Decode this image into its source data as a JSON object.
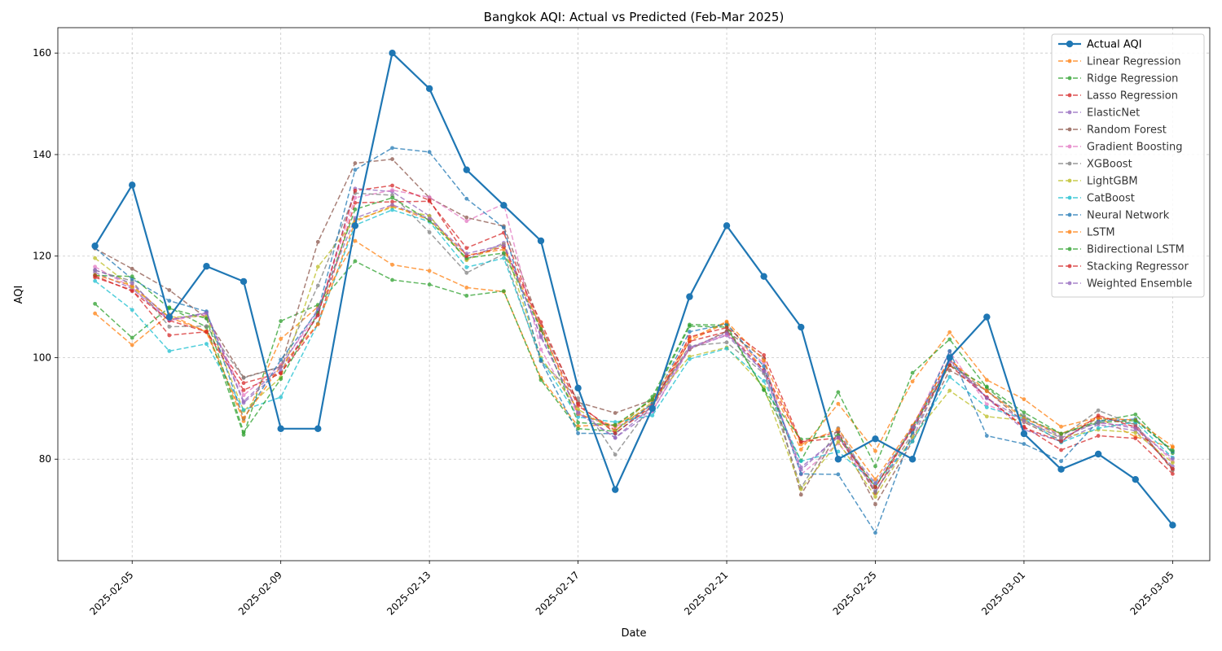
{
  "chart_data": {
    "type": "line",
    "title": "Bangkok AQI: Actual vs Predicted (Feb-Mar 2025)",
    "xlabel": "Date",
    "ylabel": "AQI",
    "grid": true,
    "legend_position": "top-right",
    "ylim": [
      60,
      165
    ],
    "yticks": [
      "80",
      "100",
      "120",
      "140",
      "160"
    ],
    "xlim": [
      "2025-02-03",
      "2025-03-06"
    ],
    "xticks": [
      "2025-02-05",
      "2025-02-09",
      "2025-02-13",
      "2025-02-17",
      "2025-02-21",
      "2025-02-25",
      "2025-03-01",
      "2025-03-05"
    ],
    "x": [
      "2025-02-04",
      "2025-02-05",
      "2025-02-06",
      "2025-02-07",
      "2025-02-08",
      "2025-02-09",
      "2025-02-10",
      "2025-02-11",
      "2025-02-12",
      "2025-02-13",
      "2025-02-14",
      "2025-02-15",
      "2025-02-16",
      "2025-02-17",
      "2025-02-18",
      "2025-02-19",
      "2025-02-20",
      "2025-02-21",
      "2025-02-22",
      "2025-02-23",
      "2025-02-24",
      "2025-02-25",
      "2025-02-26",
      "2025-02-27",
      "2025-02-28",
      "2025-03-01",
      "2025-03-02",
      "2025-03-03",
      "2025-03-04",
      "2025-03-05"
    ],
    "series": [
      {
        "name": "Actual AQI",
        "color": "#1f77b4",
        "style": "solid",
        "values": [
          122,
          134,
          108,
          118,
          115,
          86,
          86,
          126,
          160,
          153,
          137,
          130,
          123,
          94,
          74,
          90,
          112,
          126,
          116,
          106,
          80,
          84,
          80,
          100,
          108,
          85,
          78,
          81,
          76,
          67
        ]
      },
      {
        "name": "Linear Regression",
        "color": "#ff7f0e",
        "style": "dashed",
        "values": [
          108.7,
          102.5,
          108.5,
          105.0,
          87.5,
          103.7,
          110.0,
          123.0,
          118.3,
          117.1,
          113.8,
          113.0,
          96.0,
          86.5,
          86.8,
          90.1,
          103.3,
          106.9,
          97.5,
          81.9,
          90.9,
          81.6,
          95.3,
          105.0,
          95.6,
          91.8,
          86.4,
          88.2,
          84.4,
          82.3
        ]
      },
      {
        "name": "Ridge Regression",
        "color": "#2ca02c",
        "style": "dashed",
        "values": [
          110.6,
          103.9,
          109.9,
          106.0,
          84.8,
          107.2,
          110.4,
          119.0,
          115.3,
          114.4,
          112.2,
          113.1,
          95.6,
          86.0,
          85.5,
          92.3,
          106.5,
          106.4,
          93.6,
          79.7,
          93.2,
          78.6,
          97.0,
          103.6,
          94.1,
          88.2,
          85.0,
          87.5,
          88.8,
          81.2
        ]
      },
      {
        "name": "Lasso Regression",
        "color": "#d62728",
        "style": "dashed",
        "values": [
          115.8,
          113.3,
          104.4,
          105.1,
          95.0,
          97.0,
          106.6,
          130.5,
          130.7,
          130.8,
          121.6,
          124.6,
          105.4,
          90.5,
          85.7,
          90.9,
          103.2,
          105.1,
          97.6,
          83.4,
          85.4,
          73.3,
          86.5,
          99.8,
          92.1,
          86.4,
          81.8,
          84.6,
          84.1,
          77.1
        ]
      },
      {
        "name": "ElasticNet",
        "color": "#9467bd",
        "style": "dashed",
        "values": [
          116.8,
          113.6,
          107.3,
          108.9,
          91.1,
          97.5,
          108.3,
          133.3,
          132.7,
          127.9,
          119.4,
          122.6,
          104.0,
          89.4,
          84.2,
          89.4,
          101.8,
          104.4,
          97.2,
          77.9,
          84.5,
          73.8,
          84.1,
          99.5,
          92.1,
          85.8,
          83.5,
          86.8,
          85.6,
          78.6
        ]
      },
      {
        "name": "Random Forest",
        "color": "#8c564b",
        "style": "dashed",
        "values": [
          121.5,
          117.5,
          113.3,
          107.8,
          96.1,
          98.2,
          122.8,
          138.3,
          139.1,
          131.5,
          127.6,
          125.9,
          106.2,
          91.2,
          89.1,
          91.7,
          101.6,
          105.2,
          99.9,
          73.0,
          85.3,
          71.1,
          83.5,
          97.5,
          93.5,
          87.3,
          83.7,
          88.2,
          86.9,
          77.8
        ]
      },
      {
        "name": "Gradient Boosting",
        "color": "#e377c2",
        "style": "dashed",
        "values": [
          117.9,
          113.8,
          107.3,
          108.5,
          92.6,
          98.6,
          108.7,
          131.5,
          133.0,
          131.6,
          126.9,
          130.3,
          101.6,
          88.7,
          86.4,
          89.5,
          101.9,
          104.5,
          99.0,
          77.0,
          83.1,
          74.4,
          86.2,
          101.2,
          90.8,
          87.5,
          84.9,
          87.1,
          86.5,
          79.6
        ]
      },
      {
        "name": "XGBoost",
        "color": "#7f7f7f",
        "style": "dashed",
        "values": [
          117.2,
          115.1,
          106.1,
          106.2,
          96.0,
          98.2,
          114.2,
          132.4,
          132.0,
          124.7,
          116.7,
          120.4,
          99.3,
          92.0,
          80.9,
          90.9,
          102.3,
          103.0,
          96.9,
          74.4,
          86.1,
          73.5,
          85.1,
          98.6,
          93.4,
          88.5,
          84.4,
          89.6,
          86.7,
          78.1
        ]
      },
      {
        "name": "LightGBM",
        "color": "#bcbd22",
        "style": "dashed",
        "values": [
          119.6,
          113.9,
          108.0,
          108.1,
          89.5,
          96.1,
          117.9,
          127.1,
          129.6,
          127.9,
          119.2,
          122.3,
          100.0,
          89.8,
          85.5,
          91.3,
          100.2,
          102.0,
          94.2,
          74.1,
          83.4,
          72.6,
          84.4,
          93.5,
          88.4,
          87.6,
          84.2,
          85.8,
          85.2,
          79.3
        ]
      },
      {
        "name": "CatBoost",
        "color": "#17becf",
        "style": "dashed",
        "values": [
          115.1,
          109.4,
          101.3,
          102.7,
          89.7,
          92.2,
          106.7,
          126.1,
          129.1,
          126.8,
          117.8,
          119.6,
          99.7,
          88.3,
          87.3,
          88.6,
          99.7,
          101.8,
          95.4,
          79.6,
          81.5,
          75.2,
          83.5,
          96.2,
          90.2,
          88.0,
          83.3,
          86.1,
          87.3,
          80.3
        ]
      },
      {
        "name": "Neural Network",
        "color": "#1f77b4",
        "style": "dashed",
        "values": [
          121.6,
          115.5,
          111.2,
          109.1,
          88.0,
          99.6,
          109.2,
          137.0,
          141.3,
          140.5,
          131.3,
          125.6,
          99.4,
          85.1,
          85.0,
          91.0,
          105.1,
          106.6,
          98.3,
          77.1,
          77.0,
          65.5,
          85.3,
          101.3,
          84.6,
          83.0,
          79.6,
          87.5,
          87.9,
          81.5
        ]
      },
      {
        "name": "LSTM",
        "color": "#ff7f0e",
        "style": "dashed",
        "values": [
          116.3,
          114.2,
          107.9,
          105.2,
          88.1,
          98.3,
          106.6,
          126.8,
          129.9,
          127.1,
          120.2,
          121.3,
          106.1,
          88.9,
          86.5,
          91.7,
          103.7,
          107.1,
          99.4,
          82.9,
          85.9,
          76.0,
          86.6,
          99.6,
          93.4,
          88.0,
          85.0,
          88.1,
          87.7,
          82.5
        ]
      },
      {
        "name": "Bidirectional LSTM",
        "color": "#2ca02c",
        "style": "dashed",
        "values": [
          116.2,
          116.0,
          109.7,
          107.7,
          85.3,
          95.8,
          108.8,
          129.2,
          131.5,
          127.0,
          119.6,
          120.6,
          105.6,
          87.2,
          86.7,
          91.8,
          106.2,
          106.0,
          93.7,
          83.9,
          84.7,
          74.5,
          86.3,
          98.5,
          94.3,
          89.2,
          85.0,
          87.2,
          87.6,
          81.7
        ]
      },
      {
        "name": "Stacking Regressor",
        "color": "#d62728",
        "style": "dashed",
        "values": [
          116.1,
          113.1,
          107.3,
          105.1,
          93.6,
          96.9,
          108.4,
          132.9,
          133.9,
          131.0,
          120.0,
          121.8,
          107.0,
          90.9,
          85.1,
          90.5,
          104.1,
          105.9,
          100.5,
          83.4,
          84.2,
          74.5,
          85.9,
          98.5,
          92.2,
          86.2,
          83.5,
          88.6,
          86.3,
          78.1
        ]
      },
      {
        "name": "Weighted Ensemble",
        "color": "#9467bd",
        "style": "dashed",
        "values": [
          117.3,
          114.6,
          107.5,
          108.8,
          91.4,
          98.2,
          109.6,
          127.5,
          130.1,
          127.4,
          120.5,
          122.2,
          104.3,
          89.1,
          84.2,
          90.4,
          102.0,
          104.8,
          97.3,
          78.4,
          84.3,
          75.3,
          86.3,
          99.2,
          92.0,
          87.6,
          84.2,
          87.3,
          86.1,
          80.1
        ]
      }
    ]
  }
}
